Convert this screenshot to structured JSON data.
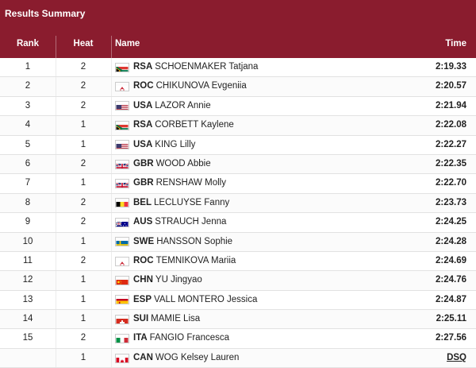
{
  "header": {
    "title": "Results Summary",
    "columns": {
      "rank": "Rank",
      "heat": "Heat",
      "name": "Name",
      "time": "Time"
    }
  },
  "colors": {
    "header_bg": "#8a1c2e"
  },
  "rows": [
    {
      "rank": "1",
      "heat": "2",
      "noc": "RSA",
      "name": "SCHOENMAKER Tatjana",
      "time": "2:19.33",
      "flag": "rsa-flag-icon"
    },
    {
      "rank": "2",
      "heat": "2",
      "noc": "ROC",
      "name": "CHIKUNOVA Evgeniia",
      "time": "2:20.57",
      "flag": "roc-flag-icon"
    },
    {
      "rank": "3",
      "heat": "2",
      "noc": "USA",
      "name": "LAZOR Annie",
      "time": "2:21.94",
      "flag": "usa-flag-icon"
    },
    {
      "rank": "4",
      "heat": "1",
      "noc": "RSA",
      "name": "CORBETT Kaylene",
      "time": "2:22.08",
      "flag": "rsa-flag-icon"
    },
    {
      "rank": "5",
      "heat": "1",
      "noc": "USA",
      "name": "KING Lilly",
      "time": "2:22.27",
      "flag": "usa-flag-icon"
    },
    {
      "rank": "6",
      "heat": "2",
      "noc": "GBR",
      "name": "WOOD Abbie",
      "time": "2:22.35",
      "flag": "gbr-flag-icon"
    },
    {
      "rank": "7",
      "heat": "1",
      "noc": "GBR",
      "name": "RENSHAW Molly",
      "time": "2:22.70",
      "flag": "gbr-flag-icon"
    },
    {
      "rank": "8",
      "heat": "2",
      "noc": "BEL",
      "name": "LECLUYSE Fanny",
      "time": "2:23.73",
      "flag": "bel-flag-icon"
    },
    {
      "rank": "9",
      "heat": "2",
      "noc": "AUS",
      "name": "STRAUCH Jenna",
      "time": "2:24.25",
      "flag": "aus-flag-icon"
    },
    {
      "rank": "10",
      "heat": "1",
      "noc": "SWE",
      "name": "HANSSON Sophie",
      "time": "2:24.28",
      "flag": "swe-flag-icon"
    },
    {
      "rank": "11",
      "heat": "2",
      "noc": "ROC",
      "name": "TEMNIKOVA Mariia",
      "time": "2:24.69",
      "flag": "roc-flag-icon"
    },
    {
      "rank": "12",
      "heat": "1",
      "noc": "CHN",
      "name": "YU Jingyao",
      "time": "2:24.76",
      "flag": "chn-flag-icon"
    },
    {
      "rank": "13",
      "heat": "1",
      "noc": "ESP",
      "name": "VALL MONTERO Jessica",
      "time": "2:24.87",
      "flag": "esp-flag-icon"
    },
    {
      "rank": "14",
      "heat": "1",
      "noc": "SUI",
      "name": "MAMIE Lisa",
      "time": "2:25.11",
      "flag": "sui-flag-icon"
    },
    {
      "rank": "15",
      "heat": "2",
      "noc": "ITA",
      "name": "FANGIO Francesca",
      "time": "2:27.56",
      "flag": "ita-flag-icon"
    },
    {
      "rank": "",
      "heat": "1",
      "noc": "CAN",
      "name": "WOG Kelsey Lauren",
      "time": "DSQ",
      "flag": "can-flag-icon"
    }
  ]
}
